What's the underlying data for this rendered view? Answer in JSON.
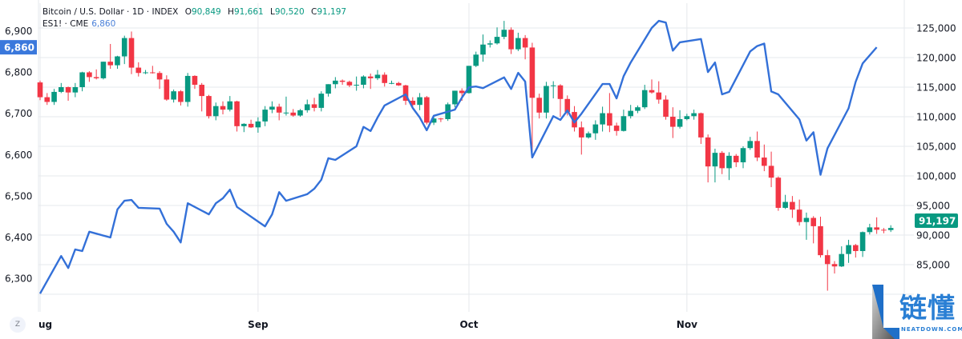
{
  "header": {
    "symbol": "Bitcoin / U.S. Dollar · 1D · INDEX",
    "ohlc": [
      {
        "k": "O",
        "v": "90,849"
      },
      {
        "k": "H",
        "v": "91,661"
      },
      {
        "k": "L",
        "v": "90,520"
      },
      {
        "k": "C",
        "v": "91,197"
      }
    ],
    "series2_name": "ES1! · CME",
    "series2_value": "6,860"
  },
  "controls": {
    "zoom_button": "Z"
  },
  "watermark": {
    "text": "链懂",
    "sub": "NEATDOWN.COM"
  },
  "colors": {
    "up": "#089981",
    "down": "#f23645",
    "es_line": "#3370d8",
    "es_label": "#3a78dc",
    "grid": "#e6e8ec"
  },
  "chart_data": {
    "type": "candlestick+line",
    "grid": true,
    "x_tick_labels": [
      "ug",
      "Sep",
      "Oct",
      "Nov"
    ],
    "x_tick_dates": [
      "Aug 1",
      "Sep 1",
      "Oct 1",
      "Nov 1"
    ],
    "right_axis": {
      "series": "Bitcoin / U.S. Dollar",
      "ylim": [
        80000,
        125700
      ],
      "ticks": [
        125000,
        120000,
        115000,
        110000,
        105000,
        100000,
        95000,
        90000,
        85000
      ],
      "tick_labels": [
        "125,000",
        "120,000",
        "115,000",
        "110,000",
        "105,000",
        "100,000",
        "95,000",
        "90,000",
        "85,000"
      ],
      "last_value_label": "91,197",
      "last_value": 91197
    },
    "left_axis": {
      "series": "ES1! · CME",
      "ylim": [
        6245,
        6970
      ],
      "ticks": [
        6900,
        6800,
        6700,
        6600,
        6500,
        6400,
        6300
      ],
      "tick_labels": [
        "6,900",
        "6,800",
        "6,700",
        "6,600",
        "6,500",
        "6,400",
        "6,300"
      ],
      "last_value_label": "6,860",
      "last_value": 6860
    },
    "candles_columns": [
      "date",
      "open",
      "high",
      "low",
      "close"
    ],
    "candles": [
      [
        "Aug 1",
        115800,
        116100,
        112800,
        113300
      ],
      [
        "Aug 2",
        113300,
        114000,
        112000,
        112500
      ],
      [
        "Aug 3",
        112500,
        114700,
        112000,
        114200
      ],
      [
        "Aug 4",
        114200,
        115700,
        114000,
        115000
      ],
      [
        "Aug 5",
        115000,
        115100,
        112700,
        114100
      ],
      [
        "Aug 6",
        114100,
        115700,
        113300,
        115000
      ],
      [
        "Aug 7",
        115000,
        117600,
        114300,
        117500
      ],
      [
        "Aug 8",
        117500,
        117700,
        115900,
        116700
      ],
      [
        "Aug 9",
        116700,
        118000,
        116300,
        116500
      ],
      [
        "Aug 10",
        116500,
        119300,
        116300,
        119300
      ],
      [
        "Aug 11",
        119300,
        122300,
        118100,
        118700
      ],
      [
        "Aug 12",
        118700,
        120300,
        118100,
        120200
      ],
      [
        "Aug 13",
        120200,
        123700,
        118900,
        123300
      ],
      [
        "Aug 14",
        123300,
        124400,
        117200,
        118300
      ],
      [
        "Aug 15",
        118300,
        119200,
        116800,
        117400
      ],
      [
        "Aug 16",
        117400,
        117900,
        117200,
        117500
      ],
      [
        "Aug 17",
        117500,
        118600,
        117300,
        117400
      ],
      [
        "Aug 18",
        117400,
        117700,
        114700,
        116300
      ],
      [
        "Aug 19",
        116300,
        117000,
        112700,
        112900
      ],
      [
        "Aug 20",
        112900,
        114600,
        112400,
        114300
      ],
      [
        "Aug 21",
        114300,
        114500,
        111900,
        112500
      ],
      [
        "Aug 22",
        112500,
        117400,
        111700,
        116900
      ],
      [
        "Aug 23",
        116900,
        117000,
        114700,
        115400
      ],
      [
        "Aug 24",
        115400,
        115700,
        110900,
        113500
      ],
      [
        "Aug 25",
        113500,
        113700,
        109700,
        110100
      ],
      [
        "Aug 26",
        110100,
        112400,
        109400,
        111800
      ],
      [
        "Aug 27",
        111800,
        112600,
        110400,
        111200
      ],
      [
        "Aug 28",
        111200,
        113500,
        110900,
        112600
      ],
      [
        "Aug 29",
        112600,
        112700,
        107500,
        108400
      ],
      [
        "Aug 30",
        108400,
        108900,
        107400,
        108800
      ],
      [
        "Aug 31",
        108800,
        109500,
        108100,
        108200
      ],
      [
        "Sep 1",
        108200,
        109900,
        107300,
        109200
      ],
      [
        "Sep 2",
        109200,
        111800,
        108400,
        111200
      ],
      [
        "Sep 3",
        111200,
        112600,
        110600,
        111700
      ],
      [
        "Sep 4",
        111700,
        112200,
        109400,
        110700
      ],
      [
        "Sep 5",
        110700,
        113400,
        110200,
        110700
      ],
      [
        "Sep 6",
        110700,
        111300,
        110000,
        110200
      ],
      [
        "Sep 7",
        110200,
        111300,
        110000,
        111100
      ],
      [
        "Sep 8",
        111100,
        112900,
        110700,
        112100
      ],
      [
        "Sep 9",
        112100,
        113200,
        110900,
        111500
      ],
      [
        "Sep 10",
        111500,
        114300,
        110900,
        113900
      ],
      [
        "Sep 11",
        113900,
        115500,
        113400,
        115500
      ],
      [
        "Sep 12",
        115500,
        116700,
        114800,
        116100
      ],
      [
        "Sep 13",
        116100,
        116300,
        115400,
        115900
      ],
      [
        "Sep 14",
        115900,
        116100,
        115000,
        115300
      ],
      [
        "Sep 15",
        115300,
        116800,
        114400,
        115400
      ],
      [
        "Sep 16",
        115400,
        117000,
        114800,
        116800
      ],
      [
        "Sep 17",
        116800,
        117300,
        114700,
        116500
      ],
      [
        "Sep 18",
        116500,
        117900,
        116200,
        117100
      ],
      [
        "Sep 19",
        117100,
        117500,
        115100,
        115700
      ],
      [
        "Sep 20",
        115700,
        116100,
        115500,
        115700
      ],
      [
        "Sep 21",
        115700,
        115900,
        115200,
        115300
      ],
      [
        "Sep 22",
        115300,
        115400,
        112000,
        112700
      ],
      [
        "Sep 23",
        112700,
        113300,
        111500,
        112000
      ],
      [
        "Sep 24",
        112000,
        114000,
        111100,
        113300
      ],
      [
        "Sep 25",
        113300,
        113500,
        108700,
        109000
      ],
      [
        "Sep 26",
        109000,
        110300,
        108600,
        109700
      ],
      [
        "Sep 27",
        109700,
        109800,
        109100,
        109600
      ],
      [
        "Sep 28",
        109600,
        112400,
        109300,
        112100
      ],
      [
        "Sep 29",
        112100,
        114400,
        111600,
        114400
      ],
      [
        "Sep 30",
        114400,
        114800,
        112700,
        114000
      ],
      [
        "Oct 1",
        114000,
        118600,
        113900,
        118600
      ],
      [
        "Oct 2",
        118600,
        121000,
        118400,
        120500
      ],
      [
        "Oct 3",
        120500,
        123900,
        119300,
        122200
      ],
      [
        "Oct 4",
        122200,
        122900,
        121700,
        122400
      ],
      [
        "Oct 5",
        122400,
        125100,
        122200,
        123500
      ],
      [
        "Oct 6",
        123500,
        126200,
        123100,
        124700
      ],
      [
        "Oct 7",
        124700,
        125100,
        120600,
        121400
      ],
      [
        "Oct 8",
        121400,
        124200,
        121100,
        123300
      ],
      [
        "Oct 9",
        123300,
        123800,
        119700,
        121700
      ],
      [
        "Oct 10",
        121700,
        122500,
        104000,
        113200
      ],
      [
        "Oct 11",
        113200,
        113900,
        109700,
        110700
      ],
      [
        "Oct 12",
        110700,
        115900,
        109700,
        115200
      ],
      [
        "Oct 13",
        115200,
        116000,
        113100,
        115300
      ],
      [
        "Oct 14",
        115300,
        115500,
        110000,
        113000
      ],
      [
        "Oct 15",
        113000,
        113600,
        110200,
        110800
      ],
      [
        "Oct 16",
        110800,
        111800,
        107500,
        108200
      ],
      [
        "Oct 17",
        108200,
        109200,
        103600,
        106500
      ],
      [
        "Oct 18",
        106500,
        107500,
        106300,
        107200
      ],
      [
        "Oct 19",
        107200,
        109400,
        106100,
        108700
      ],
      [
        "Oct 20",
        108700,
        111700,
        107500,
        110600
      ],
      [
        "Oct 21",
        110600,
        114000,
        107400,
        108500
      ],
      [
        "Oct 22",
        108500,
        109000,
        106800,
        107600
      ],
      [
        "Oct 23",
        107600,
        111200,
        107500,
        110100
      ],
      [
        "Oct 24",
        110100,
        112000,
        109700,
        111000
      ],
      [
        "Oct 25",
        111000,
        111900,
        110600,
        111600
      ],
      [
        "Oct 26",
        111600,
        115400,
        111300,
        114500
      ],
      [
        "Oct 27",
        114500,
        116300,
        113900,
        114100
      ],
      [
        "Oct 28",
        114100,
        116000,
        112200,
        112900
      ],
      [
        "Oct 29",
        112900,
        113600,
        109500,
        110000
      ],
      [
        "Oct 30",
        110000,
        111600,
        106400,
        108300
      ],
      [
        "Oct 31",
        108300,
        111100,
        108000,
        109600
      ],
      [
        "Nov 1",
        109600,
        110500,
        109400,
        110100
      ],
      [
        "Nov 2",
        110100,
        111200,
        109500,
        110600
      ],
      [
        "Nov 3",
        110600,
        110700,
        105400,
        106500
      ],
      [
        "Nov 4",
        106500,
        107000,
        98900,
        101600
      ],
      [
        "Nov 5",
        101600,
        104600,
        98900,
        103900
      ],
      [
        "Nov 6",
        103900,
        104200,
        100300,
        101300
      ],
      [
        "Nov 7",
        101300,
        104000,
        99300,
        103400
      ],
      [
        "Nov 8",
        103400,
        103700,
        101500,
        102300
      ],
      [
        "Nov 9",
        102300,
        105000,
        101300,
        104700
      ],
      [
        "Nov 10",
        104700,
        106600,
        104400,
        105900
      ],
      [
        "Nov 11",
        105900,
        107500,
        102500,
        103100
      ],
      [
        "Nov 12",
        103100,
        105300,
        100800,
        101700
      ],
      [
        "Nov 13",
        101700,
        104100,
        98100,
        99700
      ],
      [
        "Nov 14",
        99700,
        99900,
        94100,
        94600
      ],
      [
        "Nov 15",
        94600,
        96800,
        94400,
        95600
      ],
      [
        "Nov 16",
        95600,
        96600,
        92900,
        94300
      ],
      [
        "Nov 17",
        94300,
        96000,
        91600,
        92200
      ],
      [
        "Nov 18",
        92200,
        93800,
        89200,
        92900
      ],
      [
        "Nov 19",
        92900,
        93200,
        88600,
        91500
      ],
      [
        "Nov 20",
        91500,
        93100,
        86200,
        86600
      ],
      [
        "Nov 21",
        86600,
        87500,
        80600,
        85100
      ],
      [
        "Nov 22",
        85100,
        85600,
        83500,
        84700
      ],
      [
        "Nov 23",
        84700,
        88100,
        84600,
        86800
      ],
      [
        "Nov 24",
        86800,
        89200,
        85300,
        88300
      ],
      [
        "Nov 25",
        88300,
        88500,
        86200,
        87300
      ],
      [
        "Nov 26",
        87300,
        90600,
        86300,
        90500
      ],
      [
        "Nov 27",
        90500,
        91900,
        90100,
        91300
      ],
      [
        "Nov 28",
        91300,
        93000,
        90200,
        90900
      ],
      [
        "Nov 29",
        90900,
        91200,
        90300,
        90800
      ],
      [
        "Nov 30",
        90849,
        91661,
        90520,
        91197
      ]
    ],
    "es_line_columns": [
      "date",
      "value"
    ],
    "es_line": [
      [
        "Aug 1",
        6263
      ],
      [
        "Aug 4",
        6354
      ],
      [
        "Aug 5",
        6325
      ],
      [
        "Aug 6",
        6370
      ],
      [
        "Aug 7",
        6366
      ],
      [
        "Aug 8",
        6413
      ],
      [
        "Aug 11",
        6399
      ],
      [
        "Aug 12",
        6467
      ],
      [
        "Aug 13",
        6488
      ],
      [
        "Aug 14",
        6490
      ],
      [
        "Aug 15",
        6471
      ],
      [
        "Aug 18",
        6469
      ],
      [
        "Aug 19",
        6432
      ],
      [
        "Aug 20",
        6413
      ],
      [
        "Aug 21",
        6387
      ],
      [
        "Aug 22",
        6482
      ],
      [
        "Aug 25",
        6455
      ],
      [
        "Aug 26",
        6482
      ],
      [
        "Aug 27",
        6494
      ],
      [
        "Aug 28",
        6515
      ],
      [
        "Aug 29",
        6473
      ],
      [
        "Sep 2",
        6426
      ],
      [
        "Sep 3",
        6455
      ],
      [
        "Sep 4",
        6509
      ],
      [
        "Sep 5",
        6488
      ],
      [
        "Sep 8",
        6504
      ],
      [
        "Sep 9",
        6517
      ],
      [
        "Sep 10",
        6539
      ],
      [
        "Sep 11",
        6591
      ],
      [
        "Sep 12",
        6587
      ],
      [
        "Sep 15",
        6620
      ],
      [
        "Sep 16",
        6667
      ],
      [
        "Sep 17",
        6657
      ],
      [
        "Sep 18",
        6690
      ],
      [
        "Sep 19",
        6719
      ],
      [
        "Sep 22",
        6746
      ],
      [
        "Sep 23",
        6713
      ],
      [
        "Sep 24",
        6690
      ],
      [
        "Sep 25",
        6659
      ],
      [
        "Sep 26",
        6694
      ],
      [
        "Sep 29",
        6709
      ],
      [
        "Sep 30",
        6738
      ],
      [
        "Oct 1",
        6763
      ],
      [
        "Oct 2",
        6765
      ],
      [
        "Oct 3",
        6761
      ],
      [
        "Oct 6",
        6787
      ],
      [
        "Oct 7",
        6759
      ],
      [
        "Oct 8",
        6798
      ],
      [
        "Oct 9",
        6777
      ],
      [
        "Oct 10",
        6593
      ],
      [
        "Oct 13",
        6693
      ],
      [
        "Oct 14",
        6684
      ],
      [
        "Oct 15",
        6707
      ],
      [
        "Oct 16",
        6678
      ],
      [
        "Oct 17",
        6699
      ],
      [
        "Oct 20",
        6771
      ],
      [
        "Oct 21",
        6771
      ],
      [
        "Oct 22",
        6736
      ],
      [
        "Oct 23",
        6790
      ],
      [
        "Oct 24",
        6823
      ],
      [
        "Oct 27",
        6907
      ],
      [
        "Oct 28",
        6924
      ],
      [
        "Oct 29",
        6920
      ],
      [
        "Oct 30",
        6852
      ],
      [
        "Oct 31",
        6872
      ],
      [
        "Nov 3",
        6880
      ],
      [
        "Nov 4",
        6800
      ],
      [
        "Nov 5",
        6823
      ],
      [
        "Nov 6",
        6746
      ],
      [
        "Nov 7",
        6752
      ],
      [
        "Nov 10",
        6850
      ],
      [
        "Nov 11",
        6863
      ],
      [
        "Nov 12",
        6869
      ],
      [
        "Nov 13",
        6753
      ],
      [
        "Nov 14",
        6746
      ],
      [
        "Nov 17",
        6685
      ],
      [
        "Nov 18",
        6634
      ],
      [
        "Nov 19",
        6654
      ],
      [
        "Nov 20",
        6551
      ],
      [
        "Nov 21",
        6615
      ],
      [
        "Nov 24",
        6712
      ],
      [
        "Nov 25",
        6776
      ],
      [
        "Nov 26",
        6821
      ],
      [
        "Nov 28",
        6860
      ]
    ]
  }
}
